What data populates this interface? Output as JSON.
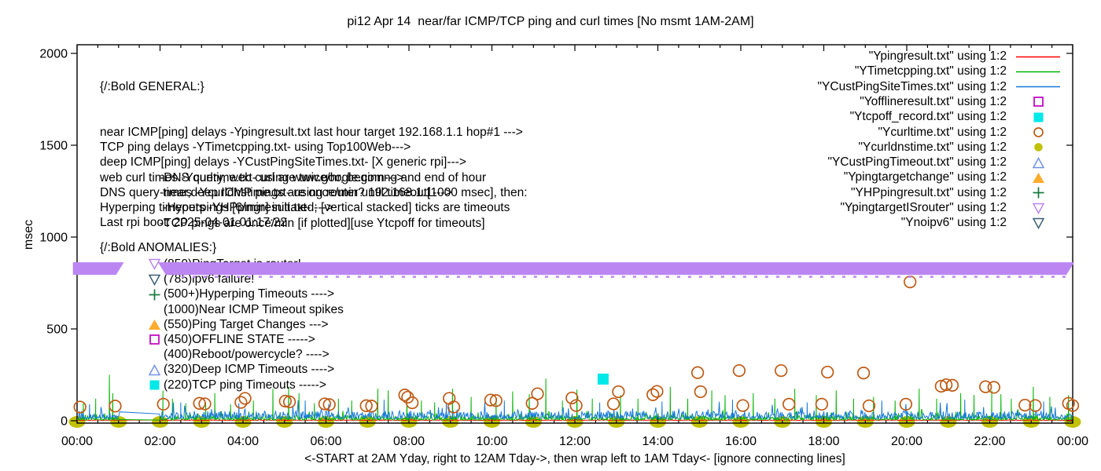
{
  "title": "pi12 Apr 14  near/far ICMP/TCP ping and curl times [No msmt 1AM-2AM]",
  "axes": {
    "ylabel": "msec",
    "xlabel": "<-START at 2AM Yday, right to 12AM Tday->, then wrap left to 1AM Tday<- [ignore connecting lines]",
    "y_ticks": [
      {
        "value": 0,
        "label": "0"
      },
      {
        "value": 500,
        "label": "500"
      },
      {
        "value": 1000,
        "label": "1000"
      },
      {
        "value": 1500,
        "label": "1500"
      },
      {
        "value": 2000,
        "label": "2000"
      }
    ],
    "x_ticks": [
      {
        "hour": 0,
        "label": "00:00"
      },
      {
        "hour": 2,
        "label": "02:00"
      },
      {
        "hour": 4,
        "label": "04:00"
      },
      {
        "hour": 6,
        "label": "06:00"
      },
      {
        "hour": 8,
        "label": "08:00"
      },
      {
        "hour": 10,
        "label": "10:00"
      },
      {
        "hour": 12,
        "label": "12:00"
      },
      {
        "hour": 14,
        "label": "14:00"
      },
      {
        "hour": 16,
        "label": "16:00"
      },
      {
        "hour": 18,
        "label": "18:00"
      },
      {
        "hour": 20,
        "label": "20:00"
      },
      {
        "hour": 22,
        "label": "22:00"
      },
      {
        "hour": 24,
        "label": "00:00"
      }
    ]
  },
  "colors": {
    "red": "#ff0000",
    "green": "#00b400",
    "blue": "#1779d8",
    "magenta": "#c000c0",
    "cyan": "#00e8e8",
    "orangebrown": "#bf5b17",
    "olive": "#c1c106",
    "lightblue": "#7292ea",
    "orange": "#ffab2e",
    "darkgreen": "#14783c",
    "violet": "#bb86f2",
    "navy": "#3c5f78",
    "black": "#000000"
  },
  "legend": {
    "items": [
      {
        "label": "\"Ypingresult.txt\" using 1:2",
        "marker": "line",
        "color": "red"
      },
      {
        "label": "\"YTimetcpping.txt\" using 1:2",
        "marker": "line",
        "color": "green"
      },
      {
        "label": "\"YCustPingSiteTimes.txt\" using 1:2",
        "marker": "line",
        "color": "blue"
      },
      {
        "label": "\"Yofflineresult.txt\" using 1:2",
        "marker": "square-open",
        "color": "magenta"
      },
      {
        "label": "\"Ytcpoff_record.txt\" using 1:2",
        "marker": "square-filled",
        "color": "cyan"
      },
      {
        "label": "\"Ycurltime.txt\" using 1:2",
        "marker": "circle-open",
        "color": "orangebrown"
      },
      {
        "label": "\"Ycurldnstime.txt\" using 1:2",
        "marker": "circle-filled",
        "color": "olive"
      },
      {
        "label": "\"YCustPingTimeout.txt\" using 1:2",
        "marker": "tri-up-open",
        "color": "lightblue"
      },
      {
        "label": "\"Ypingtargetchange\" using 1:2",
        "marker": "tri-up-filled",
        "color": "orange"
      },
      {
        "label": "\"YHPpingresult.txt\" using 1:2",
        "marker": "plus",
        "color": "darkgreen"
      },
      {
        "label": "\"YpingtargetISrouter\" using 1:2",
        "marker": "tri-down-open",
        "color": "violet"
      },
      {
        "label": "\"Ynoipv6\" using 1:2",
        "marker": "tri-down-open",
        "color": "navy"
      }
    ]
  },
  "general_block": {
    "heading": "{/:Bold GENERAL:}",
    "lines": [
      "near ICMP[ping] delays -Ypingresult.txt last hour target 192.168.1.1 hop#1 --->",
      "TCP ping delays -YTimetcpping.txt- using Top100Web--->",
      "deep ICMP[ping] delays -YCustPingSiteTimes.txt- [X generic rpi]--->",
      "web curl times -Ycurltime.txt- using www.google.com--->",
      "DNS query times -Ycurldnstime.txt- using router? 192.168.1.1--->",
      "Hyperping timeouts -YHPpingresult.txt- --->",
      "Last rpi boot: 2025-04-01 01:17:22"
    ],
    "notes": [
      "-DNS query, web curl are twice/hr, beginnng and end of hour",
      "-near,deep ICMP pings are once/min until timeout[1000 msec], then:",
      " -Hyperpings [6/min] initiated; [vertical stacked] ticks are timeouts",
      "-TCP pings are once/min [if plotted][use Ytcpoff for timeouts]"
    ]
  },
  "anomalies_block": {
    "heading": "{/:Bold ANOMALIES:}",
    "items": [
      {
        "marker": "tri-down-open",
        "color": "violet",
        "label": "(850)PingTarget is router!"
      },
      {
        "marker": "tri-down-open",
        "color": "navy",
        "label": "(785)ipv6 failure!"
      },
      {
        "marker": "plus",
        "color": "darkgreen",
        "label": "(500+)Hyperping Timeouts ---->"
      },
      {
        "marker": "none",
        "color": "black",
        "label": "(1000)Near ICMP Timeout spikes"
      },
      {
        "marker": "tri-up-filled",
        "color": "orange",
        "label": "(550)Ping Target Changes --->"
      },
      {
        "marker": "square-open",
        "color": "magenta",
        "label": "(450)OFFLINE STATE ----->"
      },
      {
        "marker": "none",
        "color": "black",
        "label": "(400)Reboot/powercycle? ---->"
      },
      {
        "marker": "tri-up-open",
        "color": "lightblue",
        "label": "(320)Deep ICMP Timeouts ---->"
      },
      {
        "marker": "square-filled",
        "color": "cyan",
        "label": "(220)TCP ping Timeouts ----->"
      }
    ]
  },
  "chart_data": {
    "type": "line",
    "title": "pi12 Apr 14  near/far ICMP/TCP ping and curl times [No msmt 1AM-2AM]",
    "xlabel": "<-START at 2AM Yday, right to 12AM Tday->, then wrap left to 1AM Tday<- [ignore connecting lines]",
    "ylabel": "msec",
    "ylim": [
      0,
      2000
    ],
    "xlim_hours": [
      0,
      24
    ],
    "grid": false,
    "legend_position": "top-right",
    "no_measurement_gap_hours": [
      1,
      2
    ],
    "series": [
      {
        "name": "Ypingresult.txt",
        "style": "noise-line",
        "color": "red",
        "noise": {
          "base": 2,
          "amp": 3
        },
        "spikes": []
      },
      {
        "name": "YTimetcpping.txt",
        "style": "noise-line",
        "color": "green",
        "noise": {
          "base": 4,
          "amp": 26
        },
        "spikes": [
          [
            0.15,
            95
          ],
          [
            0.45,
            120
          ],
          [
            0.78,
            250
          ],
          [
            0.86,
            150
          ],
          [
            2.07,
            165
          ],
          [
            2.3,
            120
          ],
          [
            2.62,
            95
          ],
          [
            3.1,
            100
          ],
          [
            3.32,
            150
          ],
          [
            3.7,
            90
          ],
          [
            4.25,
            110
          ],
          [
            4.72,
            175
          ],
          [
            5.1,
            185
          ],
          [
            5.35,
            150
          ],
          [
            5.72,
            95
          ],
          [
            6.3,
            120
          ],
          [
            6.62,
            110
          ],
          [
            7.25,
            175
          ],
          [
            7.5,
            165
          ],
          [
            7.95,
            120
          ],
          [
            8.3,
            110
          ],
          [
            8.62,
            100
          ],
          [
            9.05,
            175
          ],
          [
            9.5,
            130
          ],
          [
            10.1,
            120
          ],
          [
            10.5,
            160
          ],
          [
            10.9,
            145
          ],
          [
            11.3,
            230
          ],
          [
            11.7,
            110
          ],
          [
            12.05,
            170
          ],
          [
            12.42,
            120
          ],
          [
            13.1,
            140
          ],
          [
            13.52,
            120
          ],
          [
            14.3,
            185
          ],
          [
            14.72,
            120
          ],
          [
            15.3,
            165
          ],
          [
            15.62,
            140
          ],
          [
            16.3,
            150
          ],
          [
            16.82,
            120
          ],
          [
            17.3,
            175
          ],
          [
            17.82,
            140
          ],
          [
            18.3,
            165
          ],
          [
            18.72,
            120
          ],
          [
            19.2,
            130
          ],
          [
            19.72,
            110
          ],
          [
            20.3,
            175
          ],
          [
            20.72,
            120
          ],
          [
            21.3,
            150
          ],
          [
            21.62,
            140
          ],
          [
            22.05,
            165
          ],
          [
            22.27,
            145
          ],
          [
            22.52,
            120
          ],
          [
            23.05,
            185
          ],
          [
            23.45,
            130
          ],
          [
            23.9,
            140
          ]
        ]
      },
      {
        "name": "YCustPingSiteTimes.txt",
        "style": "noise-line",
        "color": "blue",
        "noise": {
          "base": 12,
          "amp": 42
        },
        "spikes": [
          [
            0.3,
            90
          ],
          [
            2.5,
            100
          ],
          [
            3.9,
            95
          ],
          [
            5.5,
            110
          ],
          [
            7.4,
            115
          ],
          [
            8.9,
            100
          ],
          [
            10.3,
            110
          ],
          [
            12.6,
            100
          ],
          [
            14.1,
            105
          ],
          [
            15.8,
            115
          ],
          [
            17.6,
            100
          ],
          [
            19.4,
            110
          ],
          [
            21.4,
            115
          ],
          [
            23.3,
            105
          ]
        ]
      },
      {
        "name": "Ycurltime.txt",
        "style": "scatter",
        "marker": "circle-open",
        "color": "orangebrown",
        "points": [
          [
            0.07,
            75
          ],
          [
            0.92,
            80
          ],
          [
            2.08,
            90
          ],
          [
            2.95,
            95
          ],
          [
            3.08,
            92
          ],
          [
            3.95,
            100
          ],
          [
            4.05,
            122
          ],
          [
            5.02,
            107
          ],
          [
            5.12,
            103
          ],
          [
            5.97,
            92
          ],
          [
            6.08,
            88
          ],
          [
            6.97,
            82
          ],
          [
            7.1,
            80
          ],
          [
            7.9,
            140
          ],
          [
            7.97,
            128
          ],
          [
            8.08,
            98
          ],
          [
            8.97,
            122
          ],
          [
            9.08,
            75
          ],
          [
            9.97,
            113
          ],
          [
            10.1,
            110
          ],
          [
            10.97,
            95
          ],
          [
            11.1,
            147
          ],
          [
            11.93,
            124
          ],
          [
            12.03,
            83
          ],
          [
            12.93,
            92
          ],
          [
            13.05,
            158
          ],
          [
            13.88,
            142
          ],
          [
            13.98,
            160
          ],
          [
            14.96,
            262
          ],
          [
            15.03,
            158
          ],
          [
            15.96,
            273
          ],
          [
            16.05,
            83
          ],
          [
            16.97,
            273
          ],
          [
            17.16,
            90
          ],
          [
            17.95,
            90
          ],
          [
            18.09,
            265
          ],
          [
            18.96,
            260
          ],
          [
            19.09,
            81
          ],
          [
            19.98,
            90
          ],
          [
            20.08,
            756
          ],
          [
            20.83,
            188
          ],
          [
            20.95,
            196
          ],
          [
            21.1,
            193
          ],
          [
            21.9,
            185
          ],
          [
            22.1,
            182
          ],
          [
            22.85,
            85
          ],
          [
            23.1,
            83
          ],
          [
            23.9,
            95
          ],
          [
            24.0,
            83
          ]
        ]
      },
      {
        "name": "Ycurldnstime.txt",
        "style": "scatter",
        "marker": "circle-filled",
        "color": "olive",
        "points": [
          [
            0,
            0
          ],
          [
            1,
            0
          ],
          [
            2,
            0
          ],
          [
            3,
            0
          ],
          [
            4,
            0
          ],
          [
            5,
            0
          ],
          [
            6,
            0
          ],
          [
            7,
            0
          ],
          [
            8,
            0
          ],
          [
            9,
            0
          ],
          [
            10,
            0
          ],
          [
            11,
            0
          ],
          [
            12,
            0
          ],
          [
            13,
            0
          ],
          [
            14,
            0
          ],
          [
            15,
            0
          ],
          [
            16,
            0
          ],
          [
            17,
            0
          ],
          [
            18,
            0
          ],
          [
            19,
            0
          ],
          [
            20,
            0
          ],
          [
            21,
            0
          ],
          [
            22,
            0
          ],
          [
            23,
            0
          ],
          [
            24,
            0
          ]
        ]
      },
      {
        "name": "Ytcpoff_record.txt",
        "style": "scatter",
        "marker": "square-filled",
        "color": "cyan",
        "points": [
          [
            12.68,
            227
          ]
        ]
      },
      {
        "name": "YpingtargetISrouter",
        "style": "band",
        "color": "violet",
        "value": 850,
        "segments": [
          [
            -0.1,
            1.13
          ],
          [
            1.95,
            24.05
          ]
        ]
      }
    ]
  }
}
